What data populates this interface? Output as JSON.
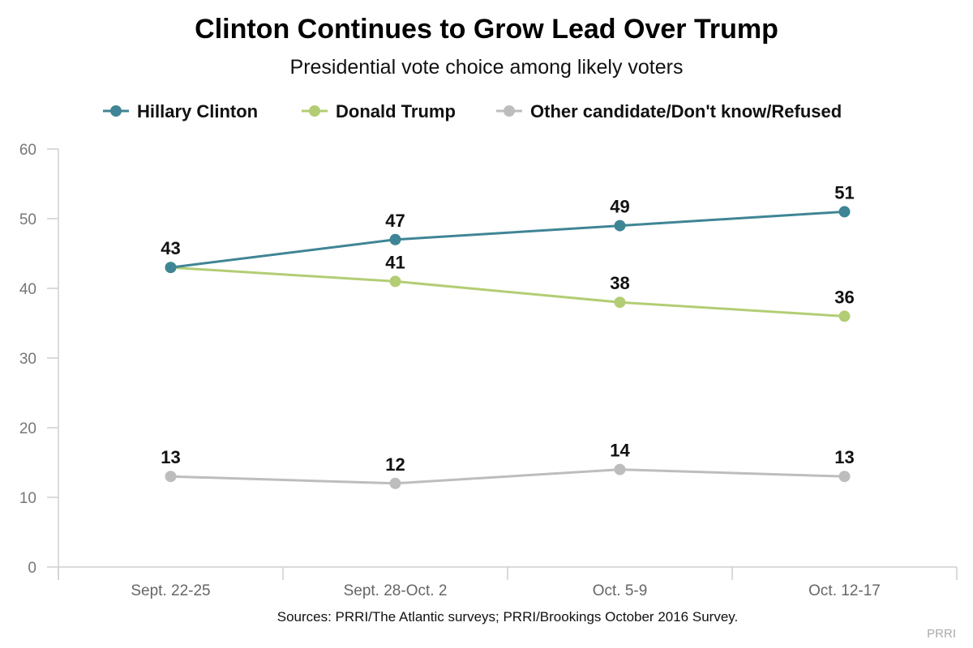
{
  "chart_data": {
    "type": "line",
    "title": "Clinton Continues to Grow Lead Over Trump",
    "subtitle": "Presidential vote choice among likely voters",
    "categories": [
      "Sept. 22-25",
      "Sept. 28-Oct. 2",
      "Oct. 5-9",
      "Oct. 12-17"
    ],
    "ylim": [
      0,
      60
    ],
    "yticks": [
      0,
      10,
      20,
      30,
      40,
      50,
      60
    ],
    "grid": false,
    "legend_position": "top",
    "series": [
      {
        "name": "Hillary Clinton",
        "color": "#3f8595",
        "values": [
          43,
          47,
          49,
          51
        ],
        "show_labels": [
          true,
          true,
          true,
          true
        ]
      },
      {
        "name": "Donald Trump",
        "color": "#b3cd74",
        "values": [
          43,
          41,
          38,
          36
        ],
        "show_labels": [
          false,
          true,
          true,
          true
        ]
      },
      {
        "name": "Other candidate/Don't know/Refused",
        "color": "#bdbdbd",
        "values": [
          13,
          12,
          14,
          13
        ],
        "show_labels": [
          true,
          true,
          true,
          true
        ]
      }
    ],
    "source": "Sources: PRRI/The Atlantic surveys; PRRI/Brookings October 2016 Survey.",
    "brand": "PRRI"
  }
}
